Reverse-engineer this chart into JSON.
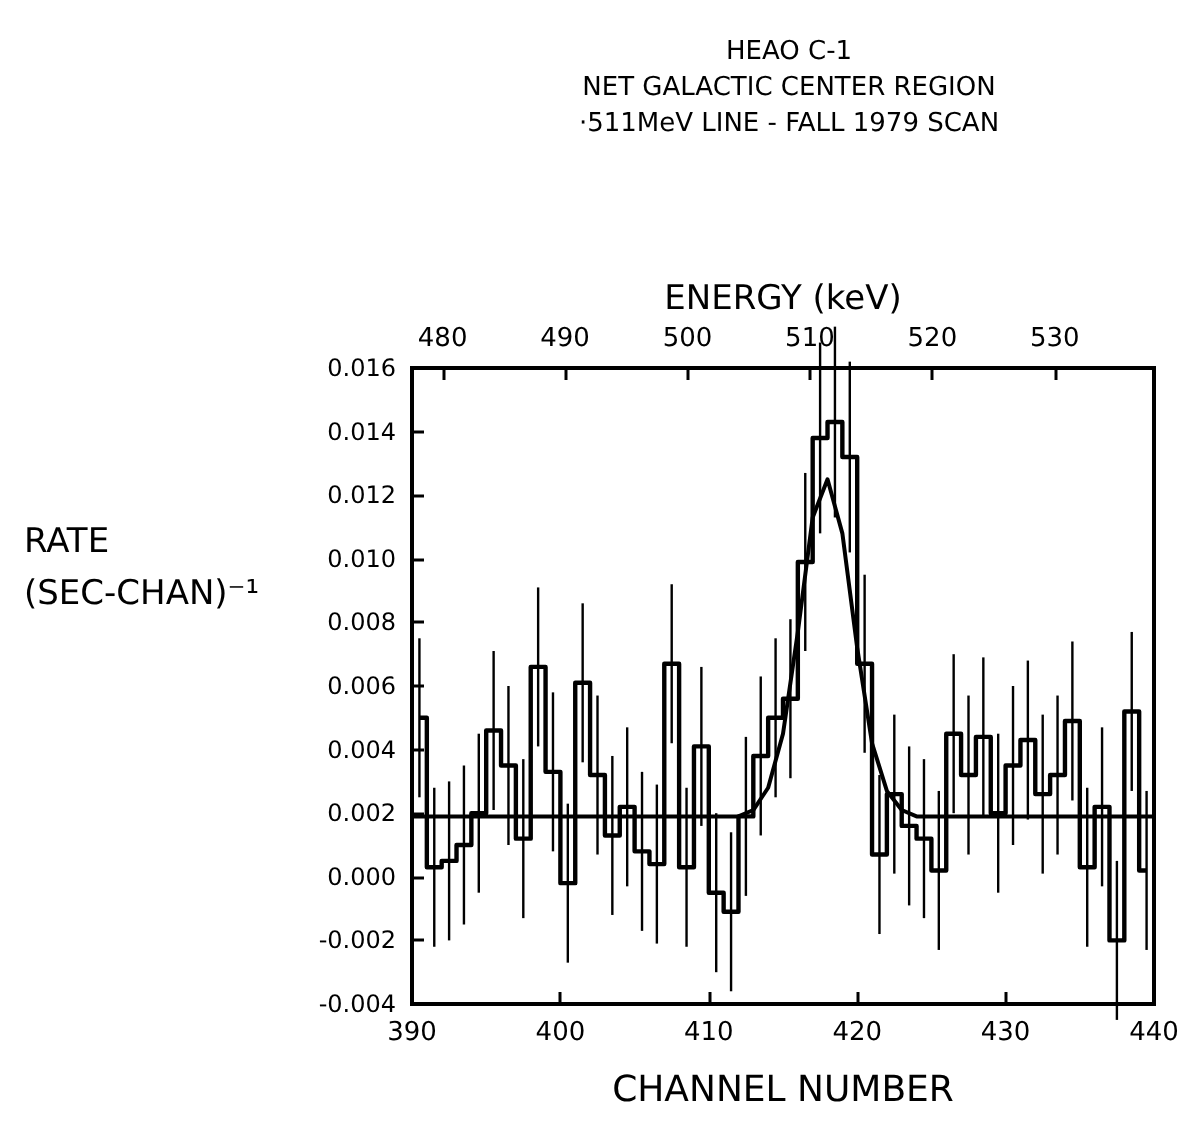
{
  "chart_data": {
    "type": "step",
    "title": "HEAO C-1\nNET GALACTIC CENTER REGION\n·511MeV LINE - FALL 1979 SCAN",
    "xlabel": "CHANNEL NUMBER",
    "x2label": "ENERGY (keV)",
    "ylabel": "RATE (SEC-CHAN)⁻¹",
    "series": [
      {
        "color": "#000000",
        "x": [
          390.5,
          391.5,
          392.5,
          393.5,
          394.5,
          395.5,
          396.5,
          397.5,
          398.5,
          399.5,
          400.5,
          401.5,
          402.5,
          403.5,
          404.5,
          405.5,
          406.5,
          407.5,
          408.5,
          409.5,
          410.5,
          411.5,
          412.5,
          413.5,
          414.5,
          415.5,
          416.5,
          417.5,
          418.5,
          419.5,
          420.5,
          421.5,
          422.5,
          423.5,
          424.5,
          425.5,
          426.5,
          427.5,
          428.5,
          429.5,
          430.5,
          431.5,
          432.5,
          433.5,
          434.5,
          435.5,
          436.5,
          437.5,
          438.5,
          439.5
        ],
        "values": [
          0.005,
          0.0003,
          0.0005,
          0.001,
          0.002,
          0.0046,
          0.0035,
          0.0012,
          0.0066,
          0.0033,
          -0.0002,
          0.0061,
          0.0032,
          0.0013,
          0.0022,
          0.0008,
          0.0004,
          0.0067,
          0.0003,
          0.0041,
          -0.0005,
          -0.0011,
          0.0019,
          0.0038,
          0.005,
          0.0056,
          0.0099,
          0.0138,
          0.0143,
          0.0132,
          0.0067,
          0.0007,
          0.0026,
          0.0016,
          0.0012,
          0.0002,
          0.0045,
          0.0032,
          0.0044,
          0.002,
          0.0035,
          0.0043,
          0.0026,
          0.0032,
          0.0049,
          0.0003,
          0.0022,
          -0.002,
          0.0052,
          0.0002
        ],
        "errors": [
          0.0025,
          0.0025,
          0.0025,
          0.0025,
          0.0025,
          0.0025,
          0.0025,
          0.0025,
          0.0025,
          0.0025,
          0.0025,
          0.0025,
          0.0025,
          0.0025,
          0.0025,
          0.0025,
          0.0025,
          0.0025,
          0.0025,
          0.0025,
          0.0025,
          0.0025,
          0.0025,
          0.0025,
          0.0025,
          0.0025,
          0.0028,
          0.003,
          0.003,
          0.003,
          0.0028,
          0.0025,
          0.0025,
          0.0025,
          0.0025,
          0.0025,
          0.0025,
          0.0025,
          0.0025,
          0.0025,
          0.0025,
          0.0025,
          0.0025,
          0.0025,
          0.0025,
          0.0025,
          0.0025,
          0.0025,
          0.0025,
          0.0025
        ]
      },
      {
        "type": "line",
        "color": "#000000",
        "x": [
          390,
          412,
          413,
          414,
          415,
          416,
          417,
          418,
          419,
          420,
          421,
          422,
          423,
          424,
          440
        ],
        "values": [
          0.0019,
          0.0019,
          0.0021,
          0.0028,
          0.0045,
          0.0077,
          0.0113,
          0.0125,
          0.0108,
          0.0072,
          0.0042,
          0.0027,
          0.0021,
          0.0019,
          0.0019
        ]
      }
    ],
    "xlim": [
      390,
      440
    ],
    "xticks": [
      390,
      400,
      410,
      420,
      430,
      440
    ],
    "x2lim": [
      477.5,
      538.1
    ],
    "x2ticks": [
      480,
      490,
      500,
      510,
      520,
      530
    ],
    "ylim": [
      -0.004,
      0.016
    ],
    "yticks": [
      {
        "value": -0.004,
        "label": "-0.004"
      },
      {
        "value": -0.002,
        "label": "-0.002"
      },
      {
        "value": 0,
        "label": "0.000"
      },
      {
        "value": 0.002,
        "label": "0.002"
      },
      {
        "value": 0.004,
        "label": "0.004"
      },
      {
        "value": 0.006,
        "label": "0.006"
      },
      {
        "value": 0.008,
        "label": "0.008"
      },
      {
        "value": 0.01,
        "label": "0.010"
      },
      {
        "value": 0.012,
        "label": "0.012"
      },
      {
        "value": 0.014,
        "label": "0.014"
      },
      {
        "value": 0.016,
        "label": "0.016"
      }
    ],
    "grid": false,
    "marker": "none"
  }
}
